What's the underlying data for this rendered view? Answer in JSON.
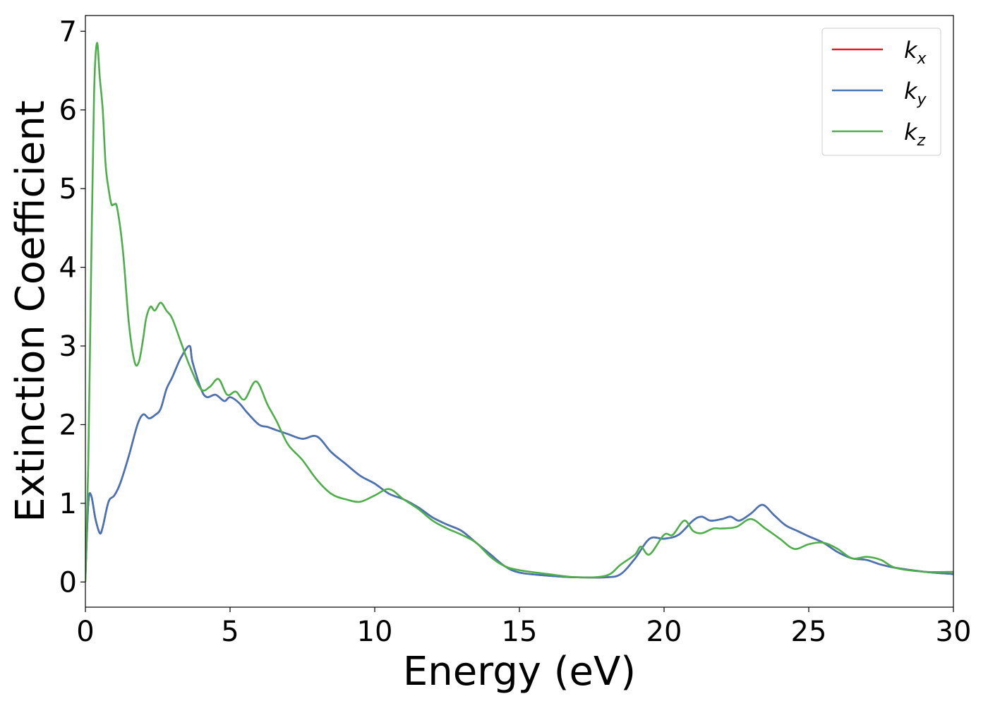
{
  "chart_data": {
    "type": "line",
    "xlabel": "Energy (eV)",
    "ylabel": "Extinction Coefficient",
    "xlim": [
      0,
      30
    ],
    "ylim": [
      -0.32,
      7.2
    ],
    "xticks": [
      0,
      5,
      10,
      15,
      20,
      25,
      30
    ],
    "yticks": [
      0,
      1,
      2,
      3,
      4,
      5,
      6,
      7
    ],
    "grid": false,
    "legend_position": "top-right",
    "series": [
      {
        "name": "k_x",
        "label_main": "k",
        "label_sub": "x",
        "color": "#e41a1c",
        "x": [
          0,
          0.1,
          0.2,
          0.35,
          0.5,
          0.6,
          0.8,
          1.0,
          1.2,
          1.5,
          1.8,
          2.0,
          2.2,
          2.4,
          2.6,
          2.8,
          3.0,
          3.3,
          3.6,
          3.7,
          4.0,
          4.2,
          4.5,
          4.8,
          5.0,
          5.3,
          5.6,
          6.0,
          6.3,
          6.6,
          7.0,
          7.5,
          8.0,
          8.5,
          9.0,
          9.5,
          10.0,
          10.5,
          11.0,
          11.5,
          12.0,
          12.5,
          13.0,
          13.5,
          14.0,
          14.5,
          15.0,
          16.0,
          17.0,
          18.0,
          18.5,
          19.0,
          19.5,
          20.0,
          20.5,
          21.0,
          21.3,
          21.6,
          22.0,
          22.3,
          22.6,
          23.0,
          23.4,
          23.8,
          24.2,
          24.6,
          25.0,
          25.5,
          26.0,
          26.5,
          27.0,
          27.5,
          28.0,
          29.0,
          30.0
        ],
        "y": [
          0.05,
          1.0,
          1.1,
          0.8,
          0.62,
          0.7,
          1.02,
          1.1,
          1.25,
          1.6,
          2.0,
          2.13,
          2.08,
          2.12,
          2.2,
          2.45,
          2.6,
          2.85,
          3.0,
          2.8,
          2.45,
          2.35,
          2.38,
          2.3,
          2.35,
          2.28,
          2.15,
          2.0,
          1.97,
          1.93,
          1.88,
          1.82,
          1.85,
          1.65,
          1.5,
          1.35,
          1.25,
          1.12,
          1.05,
          0.95,
          0.82,
          0.73,
          0.65,
          0.5,
          0.35,
          0.2,
          0.12,
          0.08,
          0.06,
          0.06,
          0.1,
          0.3,
          0.55,
          0.55,
          0.6,
          0.78,
          0.83,
          0.78,
          0.8,
          0.83,
          0.78,
          0.87,
          0.98,
          0.85,
          0.72,
          0.65,
          0.58,
          0.5,
          0.38,
          0.3,
          0.28,
          0.22,
          0.18,
          0.13,
          0.1
        ]
      },
      {
        "name": "k_y",
        "label_main": "k",
        "label_sub": "y",
        "color": "#4575b4",
        "x": [
          0,
          0.1,
          0.2,
          0.35,
          0.5,
          0.6,
          0.8,
          1.0,
          1.2,
          1.5,
          1.8,
          2.0,
          2.2,
          2.4,
          2.6,
          2.8,
          3.0,
          3.3,
          3.6,
          3.7,
          4.0,
          4.2,
          4.5,
          4.8,
          5.0,
          5.3,
          5.6,
          6.0,
          6.3,
          6.6,
          7.0,
          7.5,
          8.0,
          8.5,
          9.0,
          9.5,
          10.0,
          10.5,
          11.0,
          11.5,
          12.0,
          12.5,
          13.0,
          13.5,
          14.0,
          14.5,
          15.0,
          16.0,
          17.0,
          18.0,
          18.5,
          19.0,
          19.5,
          20.0,
          20.5,
          21.0,
          21.3,
          21.6,
          22.0,
          22.3,
          22.6,
          23.0,
          23.4,
          23.8,
          24.2,
          24.6,
          25.0,
          25.5,
          26.0,
          26.5,
          27.0,
          27.5,
          28.0,
          29.0,
          30.0
        ],
        "y": [
          0.05,
          1.0,
          1.1,
          0.8,
          0.62,
          0.7,
          1.02,
          1.1,
          1.25,
          1.6,
          2.0,
          2.13,
          2.08,
          2.12,
          2.2,
          2.45,
          2.6,
          2.85,
          3.0,
          2.8,
          2.45,
          2.35,
          2.38,
          2.3,
          2.35,
          2.28,
          2.15,
          2.0,
          1.97,
          1.93,
          1.88,
          1.82,
          1.85,
          1.65,
          1.5,
          1.35,
          1.25,
          1.12,
          1.05,
          0.95,
          0.82,
          0.73,
          0.65,
          0.5,
          0.35,
          0.2,
          0.12,
          0.08,
          0.06,
          0.06,
          0.1,
          0.3,
          0.55,
          0.55,
          0.6,
          0.78,
          0.83,
          0.78,
          0.8,
          0.83,
          0.78,
          0.87,
          0.98,
          0.85,
          0.72,
          0.65,
          0.58,
          0.5,
          0.38,
          0.3,
          0.28,
          0.22,
          0.18,
          0.13,
          0.1
        ]
      },
      {
        "name": "k_z",
        "label_main": "k",
        "label_sub": "z",
        "color": "#4daf4a",
        "x": [
          0,
          0.1,
          0.2,
          0.3,
          0.4,
          0.5,
          0.6,
          0.7,
          0.8,
          0.9,
          1.0,
          1.1,
          1.3,
          1.5,
          1.7,
          1.85,
          2.0,
          2.1,
          2.25,
          2.4,
          2.6,
          2.8,
          3.0,
          3.3,
          3.6,
          4.0,
          4.3,
          4.6,
          4.9,
          5.2,
          5.5,
          5.9,
          6.3,
          6.6,
          7.0,
          7.5,
          8.0,
          8.5,
          9.0,
          9.5,
          10.0,
          10.5,
          11.0,
          11.5,
          12.0,
          12.5,
          13.0,
          13.5,
          14.0,
          14.5,
          15.0,
          16.0,
          17.0,
          18.0,
          18.5,
          19.0,
          19.2,
          19.5,
          20.0,
          20.3,
          20.7,
          21.0,
          21.3,
          21.7,
          22.0,
          22.5,
          23.0,
          23.5,
          24.0,
          24.5,
          25.0,
          25.5,
          26.0,
          26.5,
          27.0,
          27.5,
          28.0,
          29.0,
          30.0
        ],
        "y": [
          0.0,
          1.5,
          4.0,
          6.2,
          6.85,
          6.4,
          6.0,
          5.3,
          5.0,
          4.8,
          4.8,
          4.75,
          4.2,
          3.3,
          2.8,
          2.8,
          3.1,
          3.35,
          3.5,
          3.45,
          3.55,
          3.45,
          3.35,
          3.05,
          2.75,
          2.45,
          2.48,
          2.58,
          2.38,
          2.42,
          2.32,
          2.55,
          2.25,
          2.05,
          1.75,
          1.55,
          1.3,
          1.12,
          1.05,
          1.02,
          1.1,
          1.18,
          1.05,
          0.93,
          0.78,
          0.68,
          0.6,
          0.5,
          0.32,
          0.2,
          0.15,
          0.1,
          0.06,
          0.08,
          0.22,
          0.35,
          0.45,
          0.35,
          0.6,
          0.6,
          0.78,
          0.65,
          0.62,
          0.68,
          0.68,
          0.7,
          0.8,
          0.68,
          0.55,
          0.42,
          0.48,
          0.5,
          0.42,
          0.3,
          0.32,
          0.28,
          0.18,
          0.13,
          0.13
        ]
      }
    ]
  }
}
